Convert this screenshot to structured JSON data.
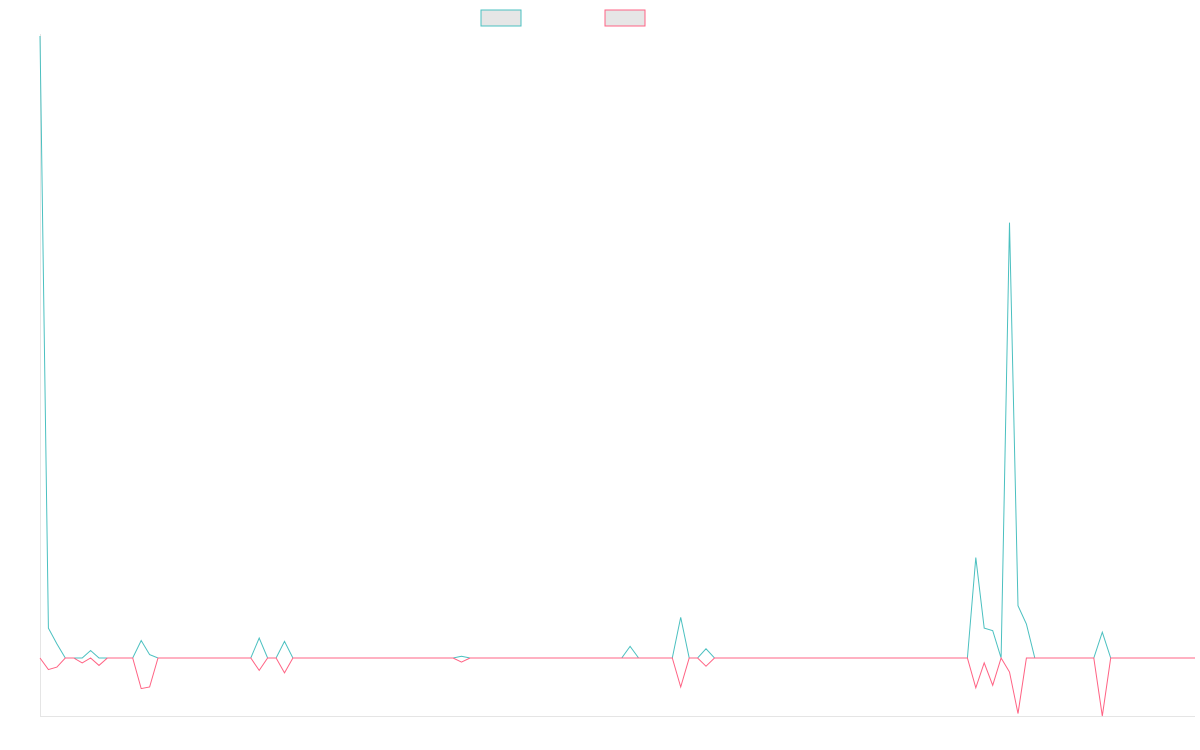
{
  "chart_data": {
    "type": "line",
    "title": "",
    "xlabel": "",
    "ylabel": "",
    "grid": false,
    "legend_position": "top-center",
    "ylim": [
      -7,
      75
    ],
    "series": [
      {
        "color": "#4bc0c0",
        "values": [
          75,
          3.6,
          1.7,
          0,
          0,
          0,
          0.9,
          0,
          0,
          0,
          0,
          0,
          2.1,
          0.4,
          0,
          0,
          0,
          0,
          0,
          0,
          0,
          0,
          0,
          0,
          0,
          0,
          2.4,
          0,
          0,
          2,
          0,
          0,
          0,
          0,
          0,
          0,
          0,
          0,
          0,
          0,
          0,
          0,
          0,
          0,
          0,
          0,
          0,
          0,
          0,
          0,
          0.2,
          0,
          0,
          0,
          0,
          0,
          0,
          0,
          0,
          0,
          0,
          0,
          0,
          0,
          0,
          0,
          0,
          0,
          0,
          0,
          1.4,
          0,
          0,
          0,
          0,
          0,
          4.9,
          0,
          0,
          1.1,
          0,
          0,
          0,
          0,
          0,
          0,
          0,
          0,
          0,
          0,
          0,
          0,
          0,
          0,
          0,
          0,
          0,
          0,
          0,
          0,
          0,
          0,
          0,
          0,
          0,
          0,
          0,
          0,
          0,
          0,
          0,
          12.1,
          3.6,
          3.3,
          0,
          52.5,
          6.3,
          4.1,
          0,
          0,
          0,
          0,
          0,
          0,
          0,
          0,
          3.1,
          0,
          0,
          0,
          0,
          0,
          0,
          0,
          0,
          0,
          0,
          0
        ]
      },
      {
        "color": "#ff6384",
        "values": [
          0,
          -1.4,
          -1.1,
          0,
          0,
          -0.6,
          0,
          -0.9,
          0,
          0,
          0,
          0,
          -3.7,
          -3.5,
          0,
          0,
          0,
          0,
          0,
          0,
          0,
          0,
          0,
          0,
          0,
          0,
          -1.5,
          0,
          0,
          -1.8,
          0,
          0,
          0,
          0,
          0,
          0,
          0,
          0,
          0,
          0,
          0,
          0,
          0,
          0,
          0,
          0,
          0,
          0,
          0,
          0,
          -0.5,
          0,
          0,
          0,
          0,
          0,
          0,
          0,
          0,
          0,
          0,
          0,
          0,
          0,
          0,
          0,
          0,
          0,
          0,
          0,
          0,
          0,
          0,
          0,
          0,
          0,
          -3.5,
          0,
          0,
          -1,
          0,
          0,
          0,
          0,
          0,
          0,
          0,
          0,
          0,
          0,
          0,
          0,
          0,
          0,
          0,
          0,
          0,
          0,
          0,
          0,
          0,
          0,
          0,
          0,
          0,
          0,
          0,
          0,
          0,
          0,
          0,
          -3.6,
          -0.6,
          -3.3,
          0,
          -1.7,
          -6.7,
          0,
          0,
          0,
          0,
          0,
          0,
          0,
          0,
          0,
          -7,
          0,
          0,
          0,
          0,
          0,
          0,
          0,
          0,
          0,
          0,
          0
        ]
      }
    ]
  }
}
